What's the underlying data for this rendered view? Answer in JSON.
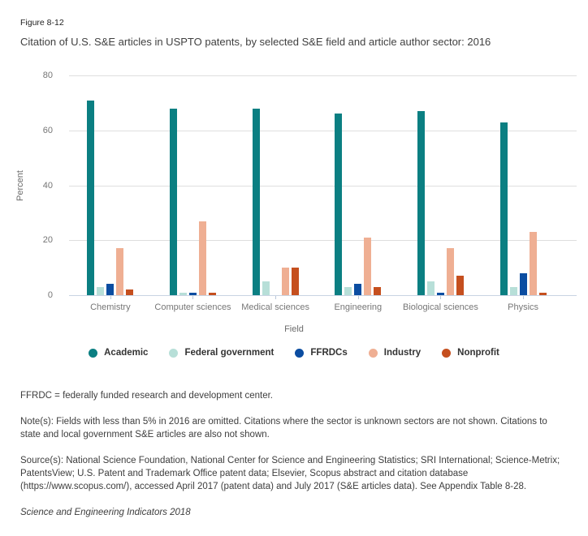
{
  "figure_label": "Figure 8-12",
  "title": "Citation of U.S. S&E articles in USPTO patents, by selected S&E field and article author sector: 2016",
  "chart_data": {
    "type": "bar",
    "xlabel": "Field",
    "ylabel": "Percent",
    "ylim": [
      0,
      80
    ],
    "yticks": [
      0,
      20,
      40,
      60,
      80
    ],
    "grid": true,
    "legend_position": "bottom",
    "categories": [
      "Chemistry",
      "Computer sciences",
      "Medical sciences",
      "Engineering",
      "Biological sciences",
      "Physics"
    ],
    "series": [
      {
        "name": "Academic",
        "color": "#0b7f82",
        "values": [
          71,
          68,
          68,
          66,
          67,
          63
        ]
      },
      {
        "name": "Federal government",
        "color": "#b7dfd8",
        "values": [
          3,
          1,
          5,
          3,
          5,
          3
        ]
      },
      {
        "name": "FFRDCs",
        "color": "#0b4da1",
        "values": [
          4,
          1,
          0,
          4,
          1,
          8
        ]
      },
      {
        "name": "Industry",
        "color": "#efaf93",
        "values": [
          17,
          27,
          10,
          21,
          17,
          23
        ]
      },
      {
        "name": "Nonprofit",
        "color": "#c54f1e",
        "values": [
          2,
          1,
          10,
          3,
          7,
          1
        ]
      }
    ]
  },
  "footer": {
    "abbreviation_note": "FFRDC = federally funded research and development center.",
    "notes": "Note(s): Fields with less than 5% in 2016 are omitted. Citations where the sector is unknown sectors are not shown. Citations to state and local government S&E articles are also not shown.",
    "sources": "Source(s): National Science Foundation, National Center for Science and Engineering Statistics; SRI International; Science-Metrix; PatentsView; U.S. Patent and Trademark Office patent data; Elsevier, Scopus abstract and citation database (https://www.scopus.com/), accessed April 2017 (patent data) and July 2017 (S&E articles data). See Appendix Table 8-28.",
    "publication": "Science and Engineering Indicators 2018"
  },
  "colors": {
    "gridline": "#dedede",
    "baseline": "#c9d4e2",
    "tick_mark": "#b9c7da",
    "axis_text": "#757575"
  }
}
